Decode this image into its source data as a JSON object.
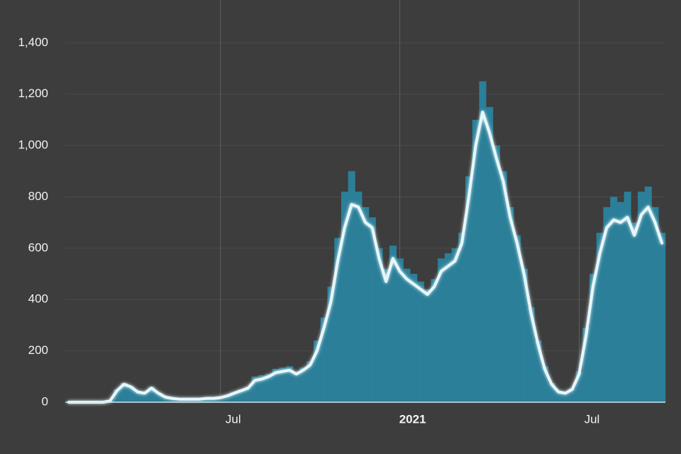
{
  "chart_data": {
    "type": "bar",
    "categories": [
      null,
      null,
      null,
      null,
      null,
      null,
      null,
      null,
      null,
      null,
      null,
      null,
      null,
      null,
      null,
      null,
      null,
      null,
      null,
      null,
      null,
      null,
      "Jul",
      null,
      null,
      null,
      null,
      null,
      null,
      null,
      null,
      null,
      null,
      null,
      null,
      null,
      null,
      null,
      null,
      null,
      null,
      null,
      null,
      null,
      null,
      null,
      null,
      null,
      "2021",
      null,
      null,
      null,
      null,
      null,
      null,
      null,
      null,
      null,
      null,
      null,
      null,
      null,
      null,
      null,
      null,
      null,
      null,
      null,
      null,
      null,
      null,
      null,
      null,
      null,
      "Jul",
      null,
      null,
      null,
      null,
      null,
      null,
      null,
      null,
      null,
      null,
      null,
      null
    ],
    "series": [
      {
        "type": "bar",
        "color": "#2b7f99",
        "values": [
          0,
          0,
          0,
          0,
          0,
          0,
          8,
          50,
          75,
          62,
          42,
          38,
          60,
          36,
          22,
          16,
          13,
          12,
          13,
          12,
          16,
          17,
          19,
          28,
          40,
          50,
          60,
          100,
          105,
          110,
          130,
          135,
          140,
          115,
          135,
          160,
          240,
          330,
          450,
          640,
          820,
          900,
          820,
          760,
          720,
          600,
          520,
          610,
          560,
          520,
          500,
          470,
          440,
          480,
          560,
          580,
          600,
          660,
          880,
          1100,
          1250,
          1150,
          1000,
          900,
          760,
          650,
          520,
          370,
          240,
          140,
          75,
          45,
          38,
          55,
          120,
          290,
          500,
          660,
          760,
          800,
          780,
          820,
          700,
          820,
          840,
          760,
          660
        ]
      },
      {
        "type": "line",
        "color": "#e6f7fb",
        "values": [
          0,
          0,
          0,
          0,
          0,
          0,
          5,
          45,
          70,
          60,
          40,
          35,
          55,
          35,
          20,
          15,
          12,
          12,
          12,
          12,
          15,
          15,
          18,
          25,
          35,
          45,
          55,
          85,
          90,
          100,
          115,
          120,
          125,
          110,
          125,
          145,
          200,
          290,
          390,
          550,
          680,
          770,
          760,
          700,
          680,
          560,
          470,
          560,
          510,
          480,
          460,
          440,
          420,
          450,
          510,
          530,
          550,
          620,
          800,
          1000,
          1130,
          1050,
          950,
          860,
          720,
          620,
          500,
          350,
          230,
          130,
          70,
          40,
          35,
          50,
          110,
          260,
          450,
          580,
          680,
          710,
          700,
          720,
          650,
          730,
          760,
          700,
          620
        ]
      }
    ],
    "ylim": [
      0,
      1550
    ],
    "yticks": [
      0,
      200,
      400,
      600,
      800,
      {
        "value": 1000,
        "label": "1,000"
      },
      {
        "value": 1200,
        "label": "1,200"
      },
      {
        "value": 1400,
        "label": "1,400"
      }
    ],
    "grid": true
  }
}
